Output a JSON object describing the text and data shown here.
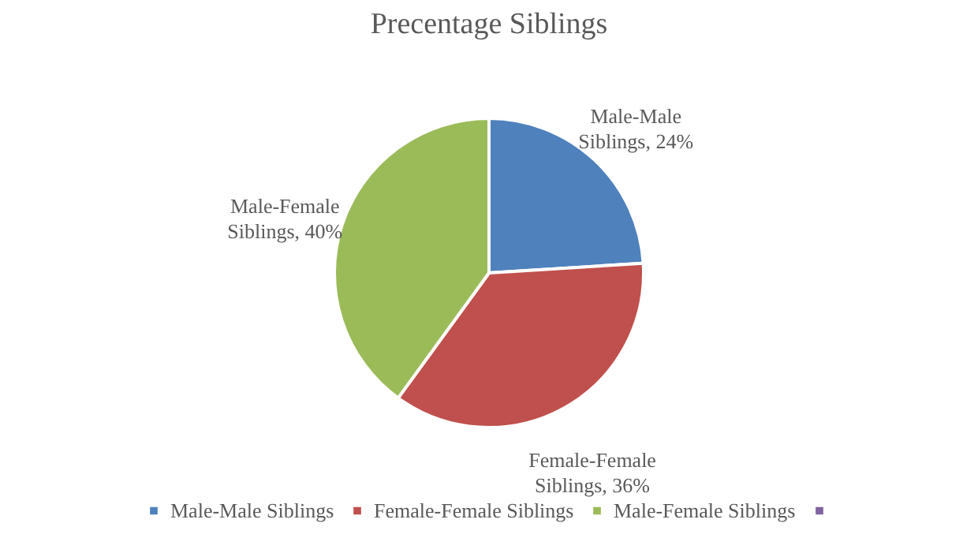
{
  "chart_data": {
    "type": "pie",
    "title": "Precentage Siblings",
    "categories": [
      "Male-Male Siblings",
      "Female-Female Siblings",
      "Male-Female Siblings",
      null
    ],
    "values": [
      24,
      36,
      40,
      0
    ],
    "colors": [
      "#4f81bd",
      "#c0504d",
      "#9bbb59",
      "#8064a2"
    ],
    "value_labels": [
      "Male-Male Siblings, 24%",
      "Female-Female Siblings, 36%",
      "Male-Female Siblings, 40%",
      null
    ],
    "legend": "bottom"
  }
}
